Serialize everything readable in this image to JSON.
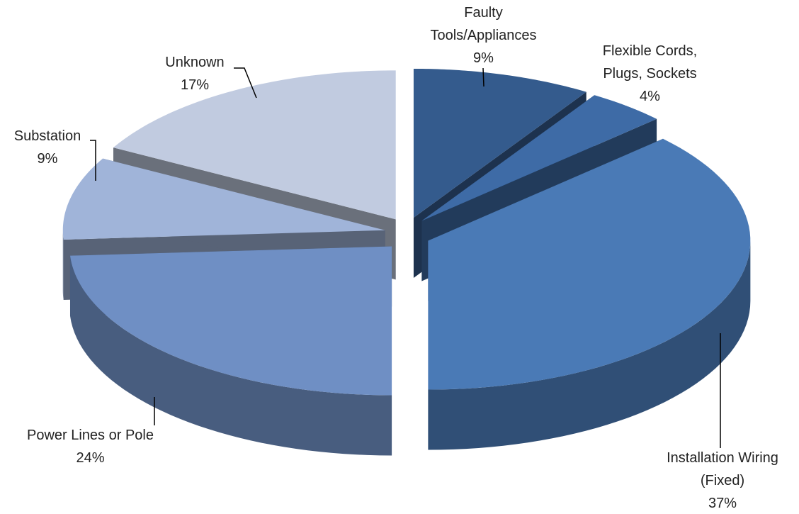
{
  "chart_data": {
    "type": "pie",
    "categories": [
      "Faulty Tools/Appliances",
      "Flexible Cords, Plugs, Sockets",
      "Installation Wiring (Fixed)",
      "Power Lines or Pole",
      "Substation",
      "Unknown"
    ],
    "values": [
      9,
      4,
      37,
      24,
      9,
      17
    ],
    "value_labels": [
      "9%",
      "4%",
      "37%",
      "24%",
      "9%",
      "17%"
    ],
    "colors": [
      "#345b8d",
      "#3e6ba6",
      "#4a7ab6",
      "#6f8fc4",
      "#a0b4d9",
      "#c1cbe0"
    ]
  }
}
